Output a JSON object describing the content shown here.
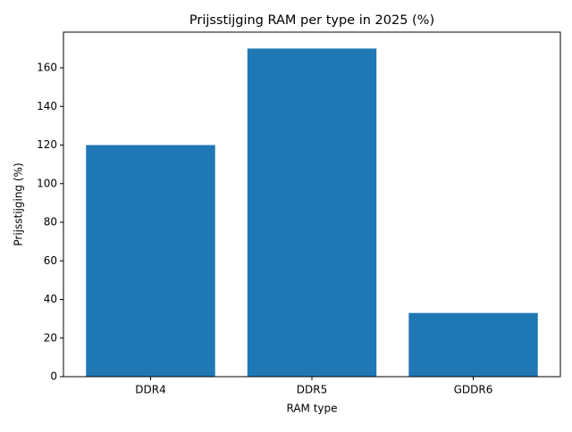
{
  "chart_data": {
    "type": "bar",
    "title": "Prijsstijging RAM per type in 2025 (%)",
    "x_label": "RAM type",
    "y_label": "Prijsstijging (%)",
    "categories": [
      "DDR4",
      "DDR5",
      "GDDR6"
    ],
    "values": [
      120,
      170,
      33
    ],
    "color": "#1f77b4",
    "ylim": [
      0,
      178.5
    ],
    "yticks": [
      0,
      20,
      40,
      60,
      80,
      100,
      120,
      140,
      160
    ],
    "grid": false
  }
}
